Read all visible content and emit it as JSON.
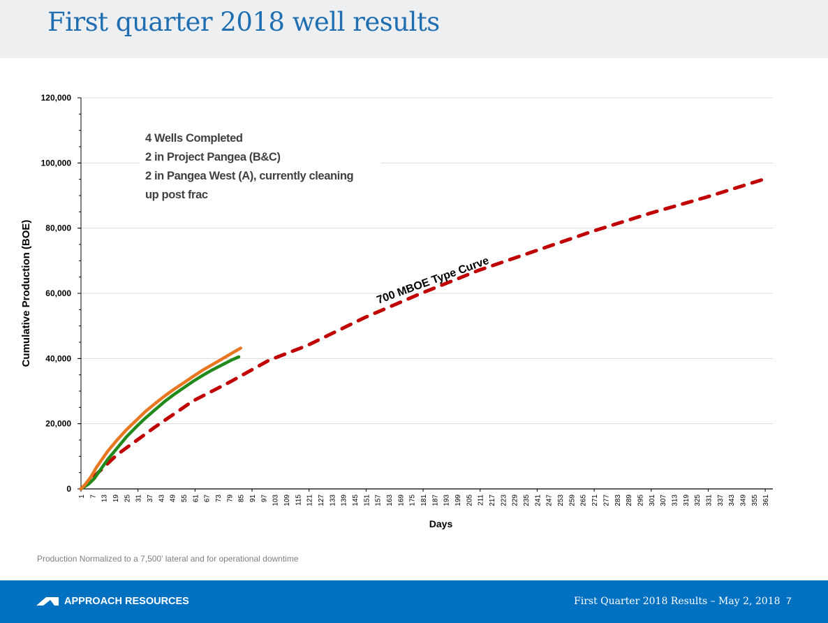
{
  "slide": {
    "title": "First quarter 2018 well results",
    "footnote": "Production Normalized to a 7,500' lateral and for operational downtime",
    "footer_company": "APPROACH RESOURCES",
    "footer_text": "First Quarter 2018 Results – May 2, 2018",
    "page_number": "7"
  },
  "annotation": {
    "lines": [
      "4 Wells Completed",
      "2 in Project Pangea (B&C)",
      "2 in Pangea West (A), currently cleaning",
      "up post frac"
    ]
  },
  "colors": {
    "title": "#1f6eb2",
    "footer": "#0070c0",
    "type_curve": "#c00000",
    "well_green": "#218a1b",
    "well_orange": "#e87722",
    "grid": "#d9d9d9"
  },
  "chart_data": {
    "type": "line",
    "xlabel": "Days",
    "ylabel": "Cumulative Production (BOE)",
    "ylim": [
      0,
      120000
    ],
    "yticks": [
      0,
      20000,
      40000,
      60000,
      80000,
      100000,
      120000
    ],
    "ytick_labels": [
      "0",
      "20,000",
      "40,000",
      "60,000",
      "80,000",
      "100,000",
      "120,000"
    ],
    "xlim": [
      1,
      365
    ],
    "xtick_step": 6,
    "xtick_start": 1,
    "xtick_end": 361,
    "type_curve_label": "700 MBOE Type Curve",
    "series": [
      {
        "name": "700 MBOE Type Curve",
        "style": "dashed",
        "color": "#c00000",
        "x": [
          1,
          10,
          20,
          40,
          60,
          80,
          100,
          120,
          150,
          180,
          210,
          240,
          270,
          300,
          330,
          363
        ],
        "y": [
          0,
          5000,
          10500,
          19000,
          27000,
          33000,
          39500,
          44000,
          52500,
          60000,
          67000,
          73000,
          79000,
          84500,
          89500,
          95500
        ]
      },
      {
        "name": "Well (green)",
        "style": "solid",
        "color": "#218a1b",
        "x": [
          1,
          5,
          8,
          12,
          15,
          20,
          25,
          30,
          35,
          40,
          45,
          50,
          55,
          60,
          65,
          70,
          75,
          80,
          84
        ],
        "y": [
          0,
          1500,
          3200,
          6500,
          9000,
          12500,
          16000,
          19000,
          21800,
          24300,
          26800,
          29000,
          31000,
          33000,
          34800,
          36500,
          38000,
          39500,
          40500
        ]
      },
      {
        "name": "Well (orange)",
        "style": "solid",
        "color": "#e87722",
        "x": [
          1,
          3,
          6,
          9,
          12,
          15,
          20,
          25,
          30,
          35,
          40,
          45,
          50,
          55,
          60,
          65,
          70,
          75,
          80,
          85
        ],
        "y": [
          0,
          1200,
          3500,
          6500,
          9000,
          11500,
          15000,
          18200,
          21000,
          23800,
          26200,
          28500,
          30600,
          32500,
          34500,
          36400,
          38100,
          39800,
          41500,
          43200
        ]
      }
    ]
  }
}
